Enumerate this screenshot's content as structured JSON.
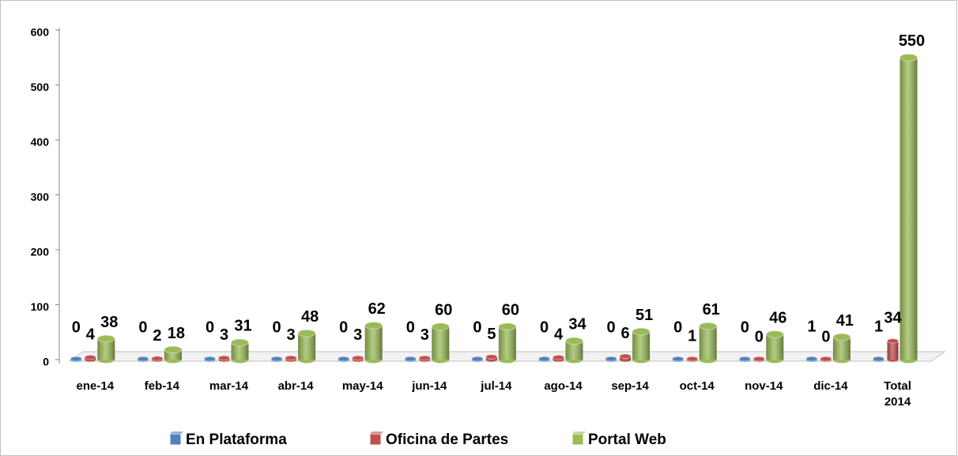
{
  "chart_data": {
    "type": "bar3d",
    "categories": [
      "ene-14",
      "feb-14",
      "mar-14",
      "abr-14",
      "may-14",
      "jun-14",
      "jul-14",
      "ago-14",
      "sep-14",
      "oct-14",
      "nov-14",
      "dic-14",
      "Total 2014"
    ],
    "series": [
      {
        "name": "En Plataforma",
        "color": "#4f81bd",
        "values": [
          0,
          0,
          0,
          0,
          0,
          0,
          0,
          0,
          0,
          0,
          0,
          1,
          1
        ]
      },
      {
        "name": "Oficina de Partes",
        "color": "#c0504d",
        "values": [
          4,
          2,
          3,
          3,
          3,
          3,
          5,
          4,
          6,
          1,
          0,
          0,
          34
        ]
      },
      {
        "name": "Portal Web",
        "color": "#9bbb59",
        "values": [
          38,
          18,
          31,
          48,
          62,
          60,
          60,
          34,
          51,
          61,
          46,
          41,
          550
        ]
      }
    ],
    "ylim": [
      0,
      600
    ],
    "yticks": [
      0,
      100,
      200,
      300,
      400,
      500,
      600
    ],
    "legend": "bottom"
  }
}
